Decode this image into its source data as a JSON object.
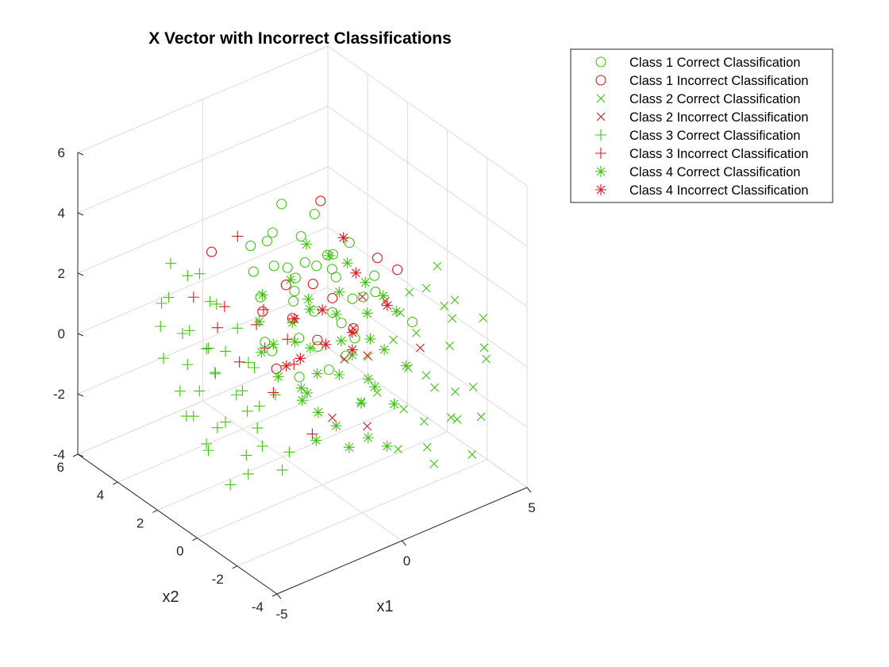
{
  "chart_data": {
    "type": "scatter3d",
    "title": "X Vector with Incorrect Classifications",
    "xlabel": "x1",
    "ylabel": "x2",
    "zlabel": "",
    "xlim": [
      -5,
      5
    ],
    "ylim": [
      -4,
      6
    ],
    "zlim": [
      -4,
      6
    ],
    "x_ticks": [
      "-5",
      "0",
      "5"
    ],
    "y_ticks": [
      "-4",
      "-2",
      "0",
      "2",
      "4",
      "6"
    ],
    "z_ticks": [
      "-4",
      "-2",
      "0",
      "2",
      "4",
      "6"
    ],
    "grid": true,
    "legend_position": "top-right, outside plot",
    "colors": {
      "correct": "#3fc40f",
      "incorrect": "#e0141b"
    },
    "series": [
      {
        "name": "Class 1 Correct Classification",
        "marker": "circle",
        "color": "#3fc40f",
        "points": [
          [
            0.5,
            1.5,
            2.5
          ],
          [
            1.0,
            1.0,
            2.8
          ],
          [
            0.2,
            2.0,
            2.2
          ],
          [
            1.5,
            1.2,
            1.8
          ],
          [
            -0.5,
            1.8,
            2.6
          ],
          [
            0.8,
            0.5,
            1.2
          ],
          [
            1.8,
            0.2,
            1.5
          ],
          [
            0.0,
            2.5,
            3.2
          ],
          [
            1.2,
            1.8,
            2.0
          ],
          [
            -1.0,
            2.2,
            2.4
          ],
          [
            2.0,
            1.0,
            1.0
          ],
          [
            0.6,
            2.8,
            3.8
          ],
          [
            1.4,
            0.8,
            0.5
          ],
          [
            -0.2,
            1.2,
            1.6
          ],
          [
            0.9,
            2.2,
            2.9
          ],
          [
            2.4,
            0.4,
            1.9
          ],
          [
            -1.5,
            1.0,
            0.8
          ],
          [
            0.3,
            0.6,
            0.2
          ],
          [
            1.7,
            1.6,
            2.3
          ],
          [
            -0.8,
            2.6,
            3.0
          ],
          [
            1.1,
            0.2,
            -0.2
          ],
          [
            0.4,
            1.9,
            1.4
          ],
          [
            2.2,
            1.4,
            2.6
          ],
          [
            -0.3,
            0.8,
            0.6
          ],
          [
            1.6,
            2.4,
            3.3
          ],
          [
            0.7,
            1.3,
            0.9
          ],
          [
            -1.2,
            1.6,
            1.9
          ],
          [
            2.6,
            0.6,
            1.2
          ],
          [
            0.1,
            2.9,
            2.7
          ],
          [
            1.3,
            0.0,
            0.4
          ],
          [
            -0.6,
            0.4,
            -0.4
          ],
          [
            1.9,
            1.9,
            1.6
          ],
          [
            3.2,
            -0.5,
            0.5
          ],
          [
            -0.9,
            1.4,
            0.1
          ],
          [
            0.5,
            0.3,
            -0.5
          ],
          [
            1.0,
            2.6,
            1.3
          ]
        ]
      },
      {
        "name": "Class 1 Incorrect Classification",
        "marker": "circle",
        "color": "#e0141b",
        "points": [
          [
            -2.2,
            2.8,
            3.2
          ],
          [
            1.2,
            1.0,
            1.3
          ],
          [
            2.0,
            2.6,
            3.5
          ],
          [
            -1.2,
            0.8,
            -0.1
          ],
          [
            0.2,
            0.5,
            0.5
          ],
          [
            3.0,
            1.0,
            2.0
          ],
          [
            1.4,
            0.2,
            0.6
          ],
          [
            -0.4,
            1.0,
            1.2
          ],
          [
            0.9,
            1.6,
            1.6
          ],
          [
            -0.8,
            2.0,
            1.1
          ],
          [
            3.4,
            0.5,
            1.7
          ],
          [
            0.3,
            2.2,
            1.5
          ]
        ]
      },
      {
        "name": "Class 2 Correct Classification",
        "marker": "x",
        "color": "#3fc40f",
        "points": [
          [
            3.5,
            -2.0,
            0.3
          ],
          [
            4.0,
            -1.5,
            0.8
          ],
          [
            2.5,
            -2.5,
            -0.5
          ],
          [
            3.0,
            -3.0,
            -1.5
          ],
          [
            4.5,
            -1.0,
            1.0
          ],
          [
            2.0,
            -1.8,
            0.0
          ],
          [
            3.8,
            -2.8,
            -0.8
          ],
          [
            1.5,
            -2.2,
            -1.0
          ],
          [
            4.2,
            -0.5,
            2.0
          ],
          [
            2.8,
            -1.2,
            0.6
          ],
          [
            3.2,
            -3.5,
            -2.5
          ],
          [
            1.8,
            -3.0,
            -2.0
          ],
          [
            4.8,
            -2.2,
            -0.5
          ],
          [
            2.2,
            -0.8,
            0.4
          ],
          [
            3.6,
            -1.6,
            1.4
          ],
          [
            1.0,
            -1.5,
            -0.6
          ],
          [
            2.6,
            -3.2,
            -1.2
          ],
          [
            4.4,
            -2.6,
            0.2
          ],
          [
            0.8,
            -2.8,
            -1.8
          ],
          [
            3.0,
            -0.6,
            1.6
          ],
          [
            5.0,
            -1.8,
            0.6
          ],
          [
            2.4,
            -2.2,
            -0.2
          ],
          [
            1.2,
            -0.8,
            0.2
          ],
          [
            3.4,
            -2.4,
            -1.0
          ],
          [
            4.0,
            -0.2,
            1.2
          ],
          [
            1.6,
            -3.6,
            -2.2
          ],
          [
            2.8,
            -0.4,
            0.9
          ],
          [
            0.6,
            -1.2,
            -0.9
          ],
          [
            3.8,
            -3.2,
            -1.6
          ],
          [
            2.0,
            -2.6,
            -1.4
          ]
        ]
      },
      {
        "name": "Class 2 Incorrect Classification",
        "marker": "x",
        "color": "#e0141b",
        "points": [
          [
            -0.8,
            -1.5,
            -0.8
          ],
          [
            1.0,
            -1.0,
            0.4
          ],
          [
            2.2,
            -0.4,
            1.5
          ],
          [
            0.2,
            -2.0,
            -1.2
          ],
          [
            2.8,
            -1.4,
            0.2
          ],
          [
            1.4,
            0.2,
            0.6
          ],
          [
            0.4,
            -0.6,
            0.3
          ],
          [
            2.0,
            0.5,
            1.3
          ]
        ]
      },
      {
        "name": "Class 3 Correct Classification",
        "marker": "plus",
        "color": "#3fc40f",
        "points": [
          [
            -3.5,
            1.0,
            0.5
          ],
          [
            -4.0,
            2.0,
            1.5
          ],
          [
            -3.0,
            0.0,
            -0.5
          ],
          [
            -4.5,
            1.5,
            0.0
          ],
          [
            -2.5,
            2.5,
            1.8
          ],
          [
            -3.8,
            0.5,
            -1.0
          ],
          [
            -2.8,
            -0.5,
            -1.5
          ],
          [
            -4.2,
            2.8,
            2.2
          ],
          [
            -3.2,
            1.8,
            0.8
          ],
          [
            -2.0,
            1.2,
            0.2
          ],
          [
            -4.8,
            0.8,
            -0.4
          ],
          [
            -3.6,
            -0.8,
            -2.0
          ],
          [
            -2.2,
            0.4,
            -0.8
          ],
          [
            -3.4,
            2.4,
            1.2
          ],
          [
            -4.4,
            0.2,
            -1.4
          ],
          [
            -2.6,
            1.6,
            0.6
          ],
          [
            -3.0,
            3.0,
            2.6
          ],
          [
            -4.0,
            -0.4,
            -2.4
          ],
          [
            -1.8,
            2.0,
            0.9
          ],
          [
            -3.8,
            1.4,
            -0.2
          ],
          [
            -2.4,
            -1.0,
            -2.2
          ],
          [
            -4.6,
            2.2,
            0.8
          ],
          [
            -2.8,
            0.8,
            -0.4
          ],
          [
            -3.6,
            3.2,
            2.0
          ],
          [
            -1.6,
            1.4,
            -0.2
          ],
          [
            -4.2,
            1.2,
            -0.8
          ],
          [
            -3.2,
            -0.2,
            -1.8
          ],
          [
            -2.0,
            2.8,
            1.4
          ],
          [
            -3.0,
            1.6,
            0.0
          ],
          [
            -4.4,
            2.6,
            1.6
          ],
          [
            -2.6,
            0.0,
            -1.2
          ],
          [
            -3.4,
            0.6,
            -1.0
          ],
          [
            -1.4,
            0.6,
            -0.8
          ],
          [
            -2.2,
            3.4,
            2.2
          ],
          [
            -3.8,
            2.0,
            0.4
          ],
          [
            -4.0,
            0.8,
            -1.6
          ],
          [
            -2.8,
            2.2,
            0.5
          ],
          [
            -1.8,
            -0.6,
            -2.0
          ],
          [
            -3.2,
            3.6,
            2.8
          ],
          [
            -2.4,
            1.0,
            -0.5
          ]
        ]
      },
      {
        "name": "Class 3 Incorrect Classification",
        "marker": "plus",
        "color": "#e0141b",
        "points": [
          [
            -1.5,
            1.0,
            0.6
          ],
          [
            -2.0,
            2.4,
            1.5
          ],
          [
            -0.5,
            0.8,
            -0.2
          ],
          [
            -1.0,
            3.0,
            3.2
          ],
          [
            -2.6,
            2.0,
            1.2
          ],
          [
            -0.8,
            -0.5,
            -1.8
          ],
          [
            -1.2,
            1.8,
            0.9
          ],
          [
            -2.2,
            1.4,
            0.2
          ],
          [
            -0.2,
            1.5,
            0.2
          ],
          [
            -3.4,
            2.2,
            2.4
          ],
          [
            -1.8,
            0.2,
            -0.4
          ],
          [
            -0.6,
            2.2,
            1.0
          ]
        ]
      },
      {
        "name": "Class 4 Correct Classification",
        "marker": "star",
        "color": "#3fc40f",
        "points": [
          [
            -1.0,
            -1.0,
            0.5
          ],
          [
            0.0,
            -1.5,
            1.0
          ],
          [
            -1.5,
            -0.5,
            1.5
          ],
          [
            0.5,
            -2.0,
            0.0
          ],
          [
            -0.5,
            0.0,
            2.0
          ],
          [
            -2.0,
            -1.5,
            0.2
          ],
          [
            1.0,
            -1.0,
            1.8
          ],
          [
            -1.2,
            -2.2,
            -0.6
          ],
          [
            0.2,
            -0.6,
            2.6
          ],
          [
            -1.8,
            0.2,
            1.2
          ],
          [
            0.8,
            -2.6,
            -0.4
          ],
          [
            -0.2,
            -1.2,
            1.4
          ],
          [
            -2.4,
            -0.8,
            0.8
          ],
          [
            1.2,
            -1.6,
            0.8
          ],
          [
            -0.8,
            0.6,
            2.8
          ],
          [
            0.4,
            -0.2,
            1.6
          ],
          [
            -1.6,
            -1.8,
            -0.2
          ],
          [
            1.6,
            -2.2,
            0.4
          ],
          [
            -0.4,
            -2.8,
            -1.0
          ],
          [
            -2.2,
            0.4,
            2.0
          ],
          [
            0.6,
            0.4,
            3.2
          ],
          [
            -1.4,
            -1.0,
            0.0
          ],
          [
            1.4,
            -0.4,
            2.4
          ],
          [
            -0.6,
            -1.6,
            0.6
          ],
          [
            -2.6,
            -0.2,
            1.4
          ],
          [
            0.0,
            0.8,
            3.6
          ],
          [
            -1.0,
            -2.6,
            -1.2
          ],
          [
            0.8,
            -1.4,
            1.2
          ],
          [
            -1.8,
            -1.2,
            0.4
          ],
          [
            1.8,
            -0.8,
            2.0
          ],
          [
            -0.2,
            -2.2,
            -0.2
          ],
          [
            -1.2,
            0.0,
            1.8
          ],
          [
            0.2,
            -3.0,
            -1.4
          ],
          [
            -2.0,
            -2.2,
            -0.8
          ],
          [
            1.0,
            0.0,
            3.0
          ],
          [
            -0.8,
            -0.4,
            1.0
          ],
          [
            -1.6,
            1.0,
            2.4
          ],
          [
            0.4,
            -1.8,
            0.2
          ],
          [
            2.0,
            -1.2,
            1.6
          ],
          [
            -0.4,
            0.2,
            2.2
          ]
        ]
      },
      {
        "name": "Class 4 Incorrect Classification",
        "marker": "star",
        "color": "#e0141b",
        "points": [
          [
            0.8,
            -0.5,
            1.0
          ],
          [
            -0.5,
            -0.8,
            1.2
          ],
          [
            1.5,
            0.2,
            2.4
          ],
          [
            0.0,
            0.0,
            1.8
          ],
          [
            -1.2,
            -0.4,
            0.8
          ],
          [
            2.2,
            -0.5,
            1.4
          ],
          [
            0.4,
            -1.0,
            0.8
          ],
          [
            -0.8,
            0.4,
            1.6
          ],
          [
            1.8,
            1.2,
            3.0
          ],
          [
            -1.6,
            -0.2,
            0.6
          ]
        ]
      }
    ]
  }
}
